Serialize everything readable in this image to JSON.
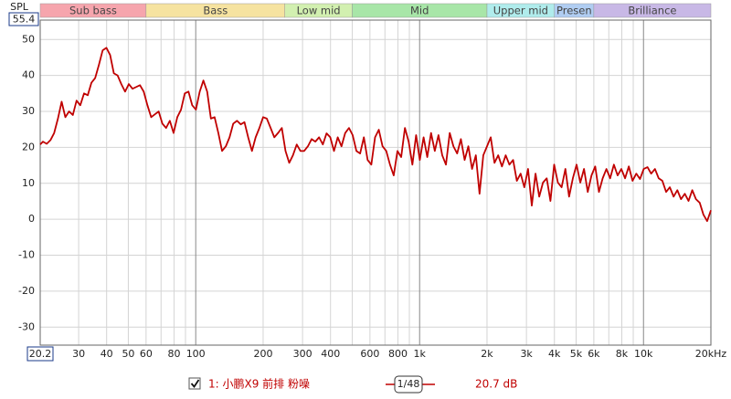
{
  "chart_data": {
    "type": "line",
    "y_label": "SPL",
    "xlim": [
      20.2,
      20000
    ],
    "ylim": [
      -35,
      55.4
    ],
    "xscale": "log",
    "xticks": [
      30,
      40,
      50,
      60,
      80,
      100,
      200,
      300,
      400,
      600,
      800,
      {
        "value": 1000,
        "label": "1k"
      },
      {
        "value": 2000,
        "label": "2k"
      },
      {
        "value": 3000,
        "label": "3k"
      },
      {
        "value": 4000,
        "label": "4k"
      },
      {
        "value": 5000,
        "label": "5k"
      },
      {
        "value": 6000,
        "label": "6k"
      },
      {
        "value": 8000,
        "label": "8k"
      },
      {
        "value": 10000,
        "label": "10k"
      },
      {
        "value": 20000,
        "label": "20kHz"
      }
    ],
    "xminor": [
      70,
      90,
      500,
      700,
      900,
      7000,
      9000
    ],
    "yticks": [
      50,
      40,
      30,
      20,
      10,
      0,
      -10,
      -20,
      -30
    ],
    "grid": true,
    "bands": [
      {
        "label": "Sub bass",
        "to": 60,
        "color": "#f6a5ad"
      },
      {
        "label": "Bass",
        "to": 250,
        "color": "#f6e3a0"
      },
      {
        "label": "Low mid",
        "to": 500,
        "color": "#d2f0b0"
      },
      {
        "label": "Mid",
        "to": 2000,
        "color": "#a8e6a8"
      },
      {
        "label": "Upper mid",
        "to": 4000,
        "color": "#b0ecec"
      },
      {
        "label": "Presen",
        "to": 6000,
        "color": "#b0cdf2"
      },
      {
        "label": "Brilliance",
        "to": 20000,
        "color": "#c8b8e6"
      }
    ],
    "x": [
      20.2,
      20.78,
      21.6,
      22.44,
      23.32,
      24.24,
      25.18,
      26.16,
      27.18,
      28.26,
      29.36,
      30.5,
      31.7,
      32.94,
      34.22,
      35.56,
      36.96,
      38.4,
      39.9,
      41.46,
      43.08,
      44.78,
      46.52,
      48.36,
      50.24,
      52.2,
      54.24,
      56.36,
      58.58,
      60.86,
      63.24,
      65.72,
      68.3,
      70.96,
      73.74,
      76.62,
      79.62,
      82.74,
      85.98,
      89.34,
      92.84,
      96.46,
      100.2,
      104.2,
      108.2,
      112.5,
      116.9,
      121.4,
      126.2,
      131.1,
      136.3,
      141.6,
      147.1,
      152.9,
      158.9,
      165.1,
      171.5,
      178.3,
      185.2,
      192.5,
      200,
      207.8,
      216,
      224.4,
      233.2,
      242.4,
      251.8,
      261.6,
      271.8,
      282.6,
      293.6,
      305,
      317,
      329.4,
      342.2,
      355.6,
      369.6,
      384,
      399,
      414.6,
      430.8,
      447.8,
      465.2,
      483.6,
      502.4,
      522,
      542.4,
      563.6,
      585.8,
      608.6,
      632.4,
      657.2,
      683,
      709.6,
      737.4,
      766.2,
      796.2,
      827.4,
      859.8,
      893.4,
      928.4,
      964.6,
      1002,
      1042,
      1082,
      1125,
      1169,
      1214,
      1262,
      1311,
      1363,
      1416,
      1471,
      1529,
      1589,
      1651,
      1715,
      1783,
      1852,
      1925,
      2000,
      2078,
      2160,
      2244,
      2332,
      2424,
      2518,
      2616,
      2718,
      2826,
      2936,
      3050,
      3170,
      3294,
      3422,
      3556,
      3696,
      3840,
      3990,
      4146,
      4308,
      4478,
      4652,
      4836,
      5024,
      5220,
      5424,
      5636,
      5858,
      6086,
      6324,
      6572,
      6830,
      7096,
      7374,
      7662,
      7962,
      8274,
      8598,
      8934,
      9284,
      9646,
      10020,
      10420,
      10820,
      11250,
      11690,
      12140,
      12620,
      13110,
      13630,
      14160,
      14710,
      15290,
      15890,
      16510,
      17150,
      17830,
      18520,
      19250,
      20000
    ],
    "series": [
      {
        "name": "1: 小鹏X9 前排 粉噪",
        "color": "#c00000",
        "values": [
          20.8,
          21.6,
          21,
          22,
          24,
          28,
          32.7,
          28.4,
          30,
          29,
          33,
          31.7,
          35,
          34.5,
          38,
          39.3,
          43,
          47,
          47.7,
          45.7,
          40.6,
          40,
          37.6,
          35.5,
          37.6,
          36.3,
          36.8,
          37.3,
          35.5,
          31.7,
          28.4,
          29.2,
          30,
          26.6,
          25.4,
          27.4,
          24,
          28.4,
          30.5,
          35,
          35.5,
          31.7,
          30.5,
          35.5,
          38.6,
          35.5,
          28,
          28.4,
          24,
          19,
          20.3,
          22.8,
          26.6,
          27.4,
          26.4,
          27,
          22.8,
          19,
          22.8,
          25.4,
          28.4,
          28,
          25.4,
          22.8,
          24,
          25.4,
          19,
          15.7,
          17.8,
          20.8,
          19,
          19,
          20.3,
          22.3,
          21.6,
          22.8,
          20.8,
          23.9,
          22.8,
          19,
          22.8,
          20.3,
          24,
          25.4,
          23.4,
          19,
          18.3,
          22.8,
          16.5,
          15.2,
          22.8,
          24.9,
          20.3,
          19,
          15.2,
          12.2,
          19,
          17.3,
          25.4,
          21.6,
          15.2,
          23.4,
          16.5,
          22.8,
          17.3,
          24,
          19,
          23.4,
          17.8,
          15.2,
          24,
          20.3,
          18.3,
          22.3,
          16.5,
          20.3,
          14,
          17.8,
          7.1,
          17.8,
          20.3,
          22.8,
          15.7,
          17.8,
          14.7,
          17.8,
          15.2,
          16.5,
          10.7,
          12.7,
          8.9,
          14,
          3.8,
          12.7,
          6.3,
          10.2,
          11.4,
          5.1,
          15.2,
          10.2,
          8.9,
          14,
          6.3,
          11.4,
          15.2,
          10.2,
          14,
          7.6,
          12.2,
          14.7,
          7.6,
          11.4,
          14,
          11.4,
          15.2,
          12.2,
          14,
          11.4,
          14.7,
          10.7,
          12.7,
          11.2,
          14,
          14.5,
          12.7,
          14,
          11.4,
          10.7,
          7.6,
          8.9,
          6.3,
          8.1,
          5.6,
          7.1,
          5.1,
          8.1,
          5.6,
          4.6,
          1.3,
          -0.5,
          2.5
        ]
      }
    ],
    "smoothing": "1/48",
    "offset": "20.7 dB"
  }
}
